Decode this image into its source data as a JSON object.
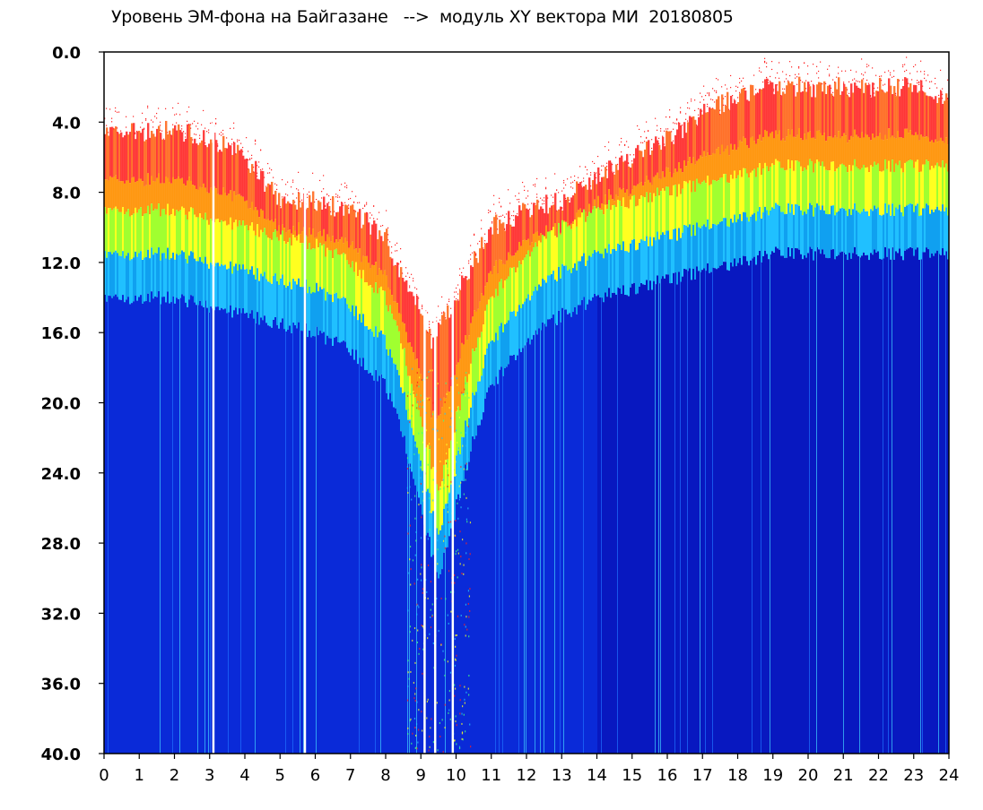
{
  "chart_data": {
    "type": "heatmap",
    "title": "Уровень ЭМ-фона на Байгазане   -->  модуль XY вектора МИ  20180805",
    "xlabel": "",
    "ylabel": "",
    "xlim": [
      0,
      24
    ],
    "ylim": [
      0,
      40
    ],
    "y_inverted": true,
    "grid": false,
    "x_ticks": [
      "0",
      "1",
      "2",
      "3",
      "4",
      "5",
      "6",
      "7",
      "8",
      "9",
      "10",
      "11",
      "12",
      "13",
      "14",
      "15",
      "16",
      "17",
      "18",
      "19",
      "20",
      "21",
      "22",
      "23",
      "24"
    ],
    "y_ticks": [
      "0.0",
      "4.0",
      "8.0",
      "12.0",
      "16.0",
      "20.0",
      "24.0",
      "28.0",
      "32.0",
      "36.0",
      "40.0"
    ],
    "colormap": [
      "#0000c8",
      "#0050ff",
      "#00c8ff",
      "#40ff80",
      "#ffff00",
      "#ff8000",
      "#ff0000"
    ],
    "background_color": "#0a14c8",
    "upper_boundary": {
      "x": [
        0,
        1,
        2,
        3,
        4,
        5,
        6,
        7,
        8,
        8.5,
        9,
        9.3,
        9.6,
        10,
        10.5,
        11,
        12,
        13,
        14,
        15,
        16,
        17,
        18,
        19,
        20,
        21,
        22,
        23,
        24
      ],
      "y": [
        4.5,
        4.5,
        4.5,
        5.0,
        6.0,
        8.5,
        8.5,
        9.0,
        10.5,
        13.0,
        14.5,
        16.5,
        15.5,
        14.0,
        12.0,
        10.0,
        9.0,
        8.5,
        7.0,
        6.0,
        5.0,
        3.5,
        2.5,
        2.0,
        2.0,
        2.0,
        2.0,
        2.0,
        2.5
      ]
    },
    "green_band_center": {
      "x": [
        0,
        1,
        2,
        3,
        4,
        5,
        6,
        7,
        8,
        8.5,
        9,
        9.5,
        10,
        10.5,
        11,
        12,
        13,
        14,
        15,
        16,
        17,
        18,
        19,
        20,
        21,
        22,
        23,
        24
      ],
      "y": [
        10.0,
        10.0,
        10.0,
        10.5,
        11.0,
        11.5,
        12.0,
        13.0,
        15.0,
        18.0,
        22.0,
        26.0,
        22.0,
        18.0,
        15.0,
        12.5,
        11.0,
        10.0,
        9.5,
        9.0,
        8.5,
        8.0,
        7.5,
        7.5,
        7.5,
        7.5,
        7.5,
        7.5
      ]
    },
    "white_gaps_x": [
      3.1,
      5.7,
      9.1,
      9.4,
      9.9
    ]
  }
}
